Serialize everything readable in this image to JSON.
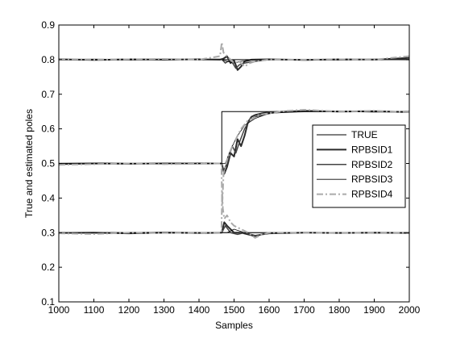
{
  "chart_data": {
    "type": "line",
    "xlabel": "Samples",
    "ylabel": "True and estimated poles",
    "xlim": [
      1000,
      2000
    ],
    "ylim": [
      0.1,
      0.9
    ],
    "xticks": [
      1000,
      1100,
      1200,
      1300,
      1400,
      1500,
      1600,
      1700,
      1800,
      1900,
      2000
    ],
    "yticks": [
      0.1,
      0.2,
      0.3,
      0.4,
      0.5,
      0.6,
      0.7,
      0.8,
      0.9
    ],
    "xtick_labels": [
      "1000",
      "1100",
      "1200",
      "1300",
      "1400",
      "1500",
      "1600",
      "1700",
      "1800",
      "1900",
      "2000"
    ],
    "ytick_labels": [
      "0.1",
      "0.2",
      "0.3",
      "0.4",
      "0.5",
      "0.6",
      "0.7",
      "0.8",
      "0.9"
    ],
    "grid": false,
    "legend_position": "right",
    "series": [
      {
        "name": "TRUE",
        "color": "#000000",
        "style": "solid",
        "width": 1,
        "lines": [
          [
            [
              1000,
              0.8
            ],
            [
              2000,
              0.8
            ]
          ],
          [
            [
              1000,
              0.5
            ],
            [
              1465,
              0.5
            ],
            [
              1465,
              0.65
            ],
            [
              2000,
              0.65
            ]
          ],
          [
            [
              1000,
              0.3
            ],
            [
              2000,
              0.3
            ]
          ]
        ]
      },
      {
        "name": "RPBSID1",
        "color": "#2a2a2a",
        "style": "solid",
        "width": 2,
        "lines": [
          [
            [
              1000,
              0.801
            ],
            [
              1100,
              0.799
            ],
            [
              1200,
              0.801
            ],
            [
              1300,
              0.8
            ],
            [
              1400,
              0.801
            ],
            [
              1460,
              0.8
            ],
            [
              1470,
              0.803
            ],
            [
              1480,
              0.81
            ],
            [
              1490,
              0.79
            ],
            [
              1500,
              0.798
            ],
            [
              1510,
              0.77
            ],
            [
              1520,
              0.78
            ],
            [
              1530,
              0.795
            ],
            [
              1550,
              0.8
            ],
            [
              1600,
              0.801
            ],
            [
              1700,
              0.799
            ],
            [
              1800,
              0.801
            ],
            [
              1900,
              0.8
            ],
            [
              2000,
              0.805
            ]
          ],
          [
            [
              1000,
              0.498
            ],
            [
              1100,
              0.5
            ],
            [
              1200,
              0.499
            ],
            [
              1300,
              0.5
            ],
            [
              1400,
              0.5
            ],
            [
              1465,
              0.5
            ],
            [
              1472,
              0.47
            ],
            [
              1480,
              0.49
            ],
            [
              1490,
              0.53
            ],
            [
              1500,
              0.52
            ],
            [
              1510,
              0.57
            ],
            [
              1520,
              0.55
            ],
            [
              1530,
              0.58
            ],
            [
              1540,
              0.62
            ],
            [
              1550,
              0.635
            ],
            [
              1560,
              0.64
            ],
            [
              1580,
              0.645
            ],
            [
              1600,
              0.648
            ],
            [
              1650,
              0.65
            ],
            [
              1700,
              0.652
            ],
            [
              1800,
              0.65
            ],
            [
              1900,
              0.651
            ],
            [
              2000,
              0.648
            ]
          ],
          [
            [
              1000,
              0.299
            ],
            [
              1100,
              0.3
            ],
            [
              1200,
              0.298
            ],
            [
              1300,
              0.3
            ],
            [
              1400,
              0.299
            ],
            [
              1465,
              0.3
            ],
            [
              1472,
              0.33
            ],
            [
              1480,
              0.32
            ],
            [
              1490,
              0.31
            ],
            [
              1500,
              0.3
            ],
            [
              1520,
              0.3
            ],
            [
              1540,
              0.295
            ],
            [
              1560,
              0.29
            ],
            [
              1580,
              0.295
            ],
            [
              1600,
              0.298
            ],
            [
              1700,
              0.3
            ],
            [
              1800,
              0.299
            ],
            [
              1900,
              0.3
            ],
            [
              2000,
              0.299
            ]
          ]
        ]
      },
      {
        "name": "RPBSID2",
        "color": "#444444",
        "style": "solid",
        "width": 1.5,
        "lines": [
          [
            [
              1000,
              0.8
            ],
            [
              1100,
              0.801
            ],
            [
              1200,
              0.799
            ],
            [
              1300,
              0.801
            ],
            [
              1400,
              0.8
            ],
            [
              1465,
              0.801
            ],
            [
              1475,
              0.79
            ],
            [
              1490,
              0.8
            ],
            [
              1505,
              0.775
            ],
            [
              1515,
              0.785
            ],
            [
              1530,
              0.79
            ],
            [
              1560,
              0.795
            ],
            [
              1600,
              0.8
            ],
            [
              1700,
              0.8
            ],
            [
              1800,
              0.799
            ],
            [
              1900,
              0.801
            ],
            [
              2000,
              0.8
            ]
          ],
          [
            [
              1000,
              0.5
            ],
            [
              1100,
              0.501
            ],
            [
              1200,
              0.5
            ],
            [
              1300,
              0.499
            ],
            [
              1400,
              0.501
            ],
            [
              1465,
              0.5
            ],
            [
              1470,
              0.48
            ],
            [
              1480,
              0.5
            ],
            [
              1495,
              0.55
            ],
            [
              1505,
              0.53
            ],
            [
              1515,
              0.56
            ],
            [
              1530,
              0.6
            ],
            [
              1545,
              0.625
            ],
            [
              1560,
              0.635
            ],
            [
              1590,
              0.642
            ],
            [
              1620,
              0.648
            ],
            [
              1700,
              0.65
            ],
            [
              1800,
              0.651
            ],
            [
              1900,
              0.649
            ],
            [
              2000,
              0.65
            ]
          ],
          [
            [
              1000,
              0.3
            ],
            [
              1100,
              0.299
            ],
            [
              1200,
              0.3
            ],
            [
              1300,
              0.301
            ],
            [
              1400,
              0.3
            ],
            [
              1465,
              0.3
            ],
            [
              1475,
              0.32
            ],
            [
              1490,
              0.3
            ],
            [
              1510,
              0.295
            ],
            [
              1530,
              0.3
            ],
            [
              1560,
              0.292
            ],
            [
              1600,
              0.298
            ],
            [
              1700,
              0.3
            ],
            [
              1800,
              0.3
            ],
            [
              1900,
              0.299
            ],
            [
              2000,
              0.3
            ]
          ]
        ]
      },
      {
        "name": "RPBSID3",
        "color": "#000000",
        "style": "solid",
        "width": 0.8,
        "lines": [
          [
            [
              1000,
              0.8
            ],
            [
              1200,
              0.8
            ],
            [
              1400,
              0.8
            ],
            [
              1465,
              0.8
            ],
            [
              1480,
              0.795
            ],
            [
              1500,
              0.79
            ],
            [
              1520,
              0.795
            ],
            [
              1560,
              0.8
            ],
            [
              1700,
              0.8
            ],
            [
              2000,
              0.8
            ]
          ],
          [
            [
              1000,
              0.5
            ],
            [
              1400,
              0.5
            ],
            [
              1465,
              0.5
            ],
            [
              1475,
              0.5
            ],
            [
              1490,
              0.54
            ],
            [
              1510,
              0.58
            ],
            [
              1530,
              0.61
            ],
            [
              1560,
              0.63
            ],
            [
              1600,
              0.645
            ],
            [
              1700,
              0.65
            ],
            [
              2000,
              0.65
            ]
          ],
          [
            [
              1000,
              0.3
            ],
            [
              1400,
              0.3
            ],
            [
              1465,
              0.3
            ],
            [
              1480,
              0.3
            ],
            [
              1500,
              0.31
            ],
            [
              1530,
              0.3
            ],
            [
              1600,
              0.3
            ],
            [
              2000,
              0.3
            ]
          ]
        ]
      },
      {
        "name": "RPBSID4",
        "color": "#aaaaaa",
        "style": "dashdot",
        "width": 2,
        "lines": [
          [
            [
              1000,
              0.802
            ],
            [
              1100,
              0.8
            ],
            [
              1200,
              0.801
            ],
            [
              1300,
              0.802
            ],
            [
              1400,
              0.8
            ],
            [
              1460,
              0.81
            ],
            [
              1465,
              0.85
            ],
            [
              1470,
              0.82
            ],
            [
              1480,
              0.81
            ],
            [
              1490,
              0.8
            ],
            [
              1500,
              0.79
            ],
            [
              1515,
              0.795
            ],
            [
              1530,
              0.78
            ],
            [
              1545,
              0.79
            ],
            [
              1560,
              0.795
            ],
            [
              1600,
              0.8
            ],
            [
              1700,
              0.8
            ],
            [
              1800,
              0.801
            ],
            [
              1900,
              0.8
            ],
            [
              2000,
              0.81
            ]
          ],
          [
            [
              1000,
              0.496
            ],
            [
              1100,
              0.498
            ],
            [
              1200,
              0.5
            ],
            [
              1300,
              0.498
            ],
            [
              1400,
              0.499
            ],
            [
              1464,
              0.5
            ],
            [
              1466,
              0.38
            ],
            [
              1468,
              0.42
            ],
            [
              1470,
              0.47
            ],
            [
              1480,
              0.51
            ],
            [
              1495,
              0.55
            ],
            [
              1505,
              0.57
            ],
            [
              1520,
              0.6
            ],
            [
              1540,
              0.625
            ],
            [
              1555,
              0.63
            ],
            [
              1570,
              0.64
            ],
            [
              1600,
              0.645
            ],
            [
              1650,
              0.652
            ],
            [
              1700,
              0.655
            ],
            [
              1800,
              0.65
            ],
            [
              1900,
              0.652
            ],
            [
              2000,
              0.648
            ]
          ],
          [
            [
              1000,
              0.298
            ],
            [
              1100,
              0.296
            ],
            [
              1200,
              0.3
            ],
            [
              1300,
              0.299
            ],
            [
              1400,
              0.3
            ],
            [
              1464,
              0.3
            ],
            [
              1466,
              0.42
            ],
            [
              1468,
              0.37
            ],
            [
              1472,
              0.34
            ],
            [
              1480,
              0.35
            ],
            [
              1490,
              0.33
            ],
            [
              1500,
              0.32
            ],
            [
              1520,
              0.31
            ],
            [
              1540,
              0.3
            ],
            [
              1560,
              0.285
            ],
            [
              1580,
              0.295
            ],
            [
              1600,
              0.3
            ],
            [
              1700,
              0.3
            ],
            [
              1800,
              0.299
            ],
            [
              1900,
              0.3
            ],
            [
              2000,
              0.3
            ]
          ]
        ]
      }
    ]
  }
}
